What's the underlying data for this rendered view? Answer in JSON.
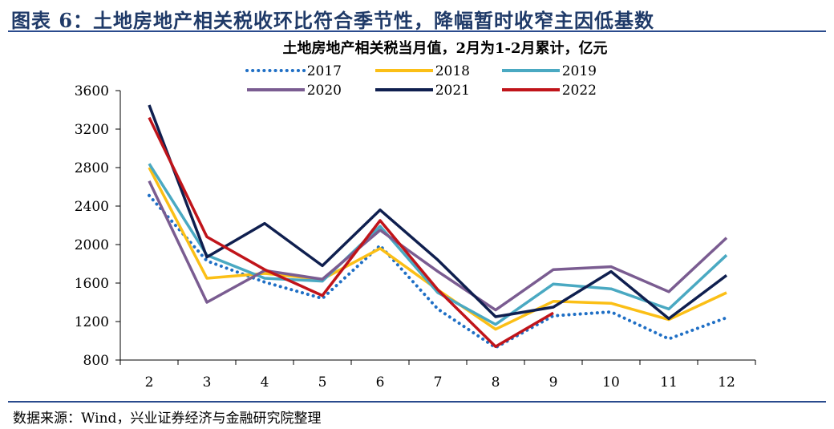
{
  "header": {
    "title": "图表 6：土地房地产相关税收环比符合季节性，降幅暂时收窄主因低基数"
  },
  "footer": {
    "source": "数据来源：Wind，兴业证券经济与金融研究院整理"
  },
  "chart_data": {
    "type": "line",
    "title": "土地房地产相关税当月值，2月为1-2月累计，亿元",
    "xlabel": "",
    "ylabel": "",
    "categories": [
      "2",
      "3",
      "4",
      "5",
      "6",
      "7",
      "8",
      "9",
      "10",
      "11",
      "12"
    ],
    "ylim": [
      800,
      3600
    ],
    "yticks": [
      800,
      1200,
      1600,
      2000,
      2400,
      2800,
      3200,
      3600
    ],
    "ytick_labels": [
      "800",
      "1200",
      "1600",
      "2000",
      "2400",
      "2800",
      "3200",
      "3600"
    ],
    "legend_position": "top",
    "series": [
      {
        "name": "2017",
        "color": "#1f6fc5",
        "style": "dotted",
        "values": [
          2510,
          1830,
          1610,
          1440,
          1990,
          1330,
          930,
          1260,
          1300,
          1020,
          1240
        ]
      },
      {
        "name": "2018",
        "color": "#fbbf16",
        "style": "solid",
        "values": [
          2800,
          1650,
          1700,
          1640,
          1960,
          1530,
          1120,
          1410,
          1390,
          1220,
          1500
        ]
      },
      {
        "name": "2019",
        "color": "#4aa9c2",
        "style": "solid",
        "values": [
          2840,
          1890,
          1650,
          1620,
          2190,
          1500,
          1170,
          1590,
          1540,
          1330,
          1890
        ]
      },
      {
        "name": "2020",
        "color": "#7a5c91",
        "style": "solid",
        "values": [
          2660,
          1400,
          1730,
          1640,
          2150,
          1720,
          1320,
          1740,
          1770,
          1510,
          2070
        ]
      },
      {
        "name": "2021",
        "color": "#0f1f4f",
        "style": "solid",
        "values": [
          3450,
          1870,
          2220,
          1780,
          2360,
          1840,
          1250,
          1350,
          1720,
          1230,
          1680
        ]
      },
      {
        "name": "2022",
        "color": "#c0141a",
        "style": "solid",
        "values": [
          3320,
          2080,
          1740,
          1470,
          2250,
          1530,
          940,
          1290,
          null,
          null,
          null
        ]
      }
    ]
  }
}
